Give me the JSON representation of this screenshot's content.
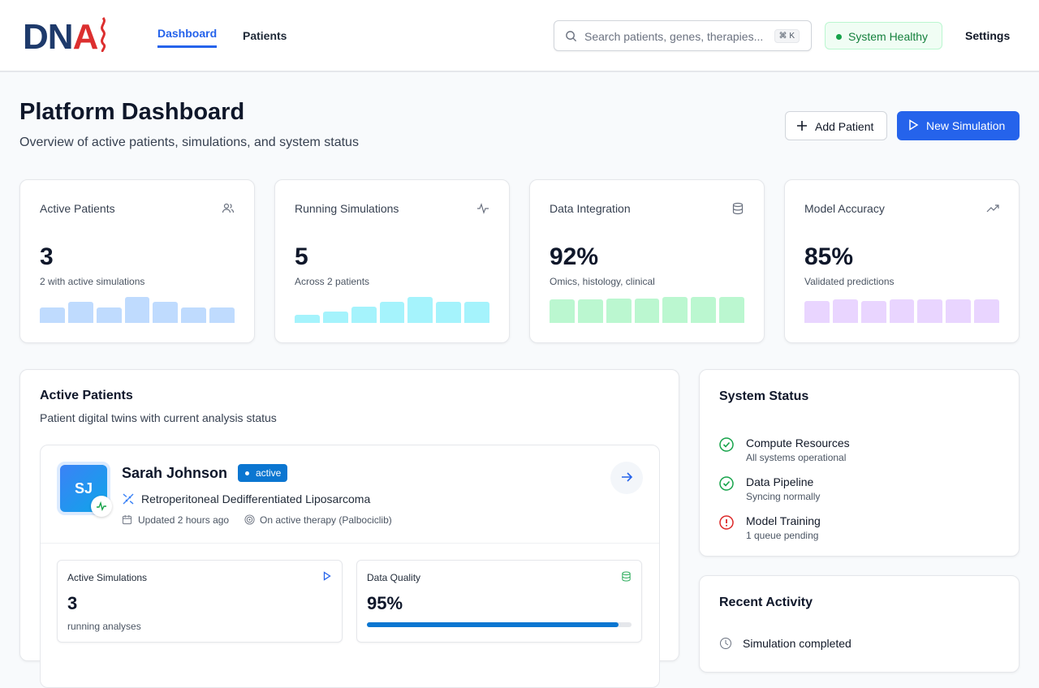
{
  "header": {
    "logo": "DNA",
    "nav": [
      {
        "label": "Dashboard",
        "active": true
      },
      {
        "label": "Patients",
        "active": false
      }
    ],
    "search_placeholder": "Search patients, genes, therapies...",
    "search_shortcut": "⌘ K",
    "status": "System Healthy",
    "settings": "Settings"
  },
  "page": {
    "title": "Platform Dashboard",
    "subtitle": "Overview of active patients, simulations, and system status",
    "add_patient": "Add Patient",
    "new_simulation": "New Simulation"
  },
  "stats": [
    {
      "title": "Active Patients",
      "value": "3",
      "desc": "2 with active simulations",
      "icon": "users-icon",
      "color": "#bfdbfe",
      "bars": [
        0.58,
        0.8,
        0.58,
        1,
        0.8,
        0.58,
        0.58
      ]
    },
    {
      "title": "Running Simulations",
      "value": "5",
      "desc": "Across 2 patients",
      "icon": "activity-icon",
      "color": "#a5f3fc",
      "bars": [
        0.3,
        0.45,
        0.62,
        0.8,
        1,
        0.8,
        0.8
      ]
    },
    {
      "title": "Data Integration",
      "value": "92%",
      "desc": "Omics, histology, clinical",
      "icon": "database-icon",
      "color": "#bbf7d0",
      "bars": [
        0.9,
        0.9,
        0.95,
        0.95,
        1,
        1,
        1
      ]
    },
    {
      "title": "Model Accuracy",
      "value": "85%",
      "desc": "Validated predictions",
      "icon": "trending-up-icon",
      "color": "#e9d5ff",
      "bars": [
        0.85,
        0.9,
        0.85,
        0.9,
        0.9,
        0.9,
        0.9
      ]
    }
  ],
  "patients": {
    "title": "Active Patients",
    "subtitle": "Patient digital twins with current analysis status",
    "items": [
      {
        "initials": "SJ",
        "name": "Sarah Johnson",
        "status": "active",
        "diagnosis": "Retroperitoneal Dedifferentiated Liposarcoma",
        "updated": "Updated 2 hours ago",
        "therapy": "On active therapy (Palbociclib)",
        "simulations": {
          "label": "Active Simulations",
          "value": "3",
          "desc": "running analyses"
        },
        "quality": {
          "label": "Data Quality",
          "value": "95%",
          "progress": 0.95
        }
      }
    ]
  },
  "system": {
    "title": "System Status",
    "items": [
      {
        "name": "Compute Resources",
        "desc": "All systems operational",
        "state": "ok"
      },
      {
        "name": "Data Pipeline",
        "desc": "Syncing normally",
        "state": "ok"
      },
      {
        "name": "Model Training",
        "desc": "1 queue pending",
        "state": "warning"
      }
    ]
  },
  "activity": {
    "title": "Recent Activity",
    "items": [
      {
        "label": "Simulation completed"
      }
    ]
  }
}
